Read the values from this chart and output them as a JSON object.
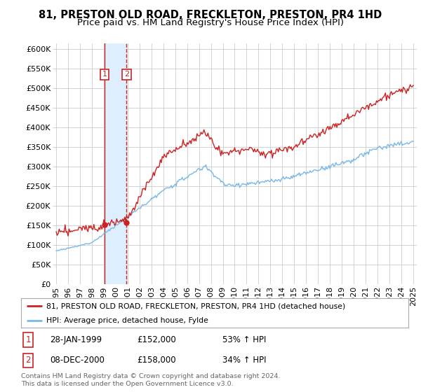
{
  "title": "81, PRESTON OLD ROAD, FRECKLETON, PRESTON, PR4 1HD",
  "subtitle": "Price paid vs. HM Land Registry's House Price Index (HPI)",
  "ylabel_ticks": [
    "£0",
    "£50K",
    "£100K",
    "£150K",
    "£200K",
    "£250K",
    "£300K",
    "£350K",
    "£400K",
    "£450K",
    "£500K",
    "£550K",
    "£600K"
  ],
  "ytick_vals": [
    0,
    50000,
    100000,
    150000,
    200000,
    250000,
    300000,
    350000,
    400000,
    450000,
    500000,
    550000,
    600000
  ],
  "ylim": [
    0,
    615000
  ],
  "xlim_start": 1994.7,
  "xlim_end": 2025.3,
  "sale1_date": 1999.07,
  "sale1_price": 152000,
  "sale1_label": "1",
  "sale2_date": 2000.92,
  "sale2_price": 158000,
  "sale2_label": "2",
  "transaction_info": [
    {
      "num": "1",
      "date": "28-JAN-1999",
      "price": "£152,000",
      "hpi": "53% ↑ HPI"
    },
    {
      "num": "2",
      "date": "08-DEC-2000",
      "price": "£158,000",
      "hpi": "34% ↑ HPI"
    }
  ],
  "legend_line1": "81, PRESTON OLD ROAD, FRECKLETON, PRESTON, PR4 1HD (detached house)",
  "legend_line2": "HPI: Average price, detached house, Fylde",
  "footer": "Contains HM Land Registry data © Crown copyright and database right 2024.\nThis data is licensed under the Open Government Licence v3.0.",
  "hpi_color": "#7ab8e8",
  "price_color": "#cc2222",
  "vline1_color": "#cc2222",
  "vline2_color": "#cc2222",
  "shade_color": "#ddeeff",
  "background_color": "#ffffff",
  "grid_color": "#cccccc",
  "title_fontsize": 10.5,
  "subtitle_fontsize": 9.5,
  "tick_fontsize": 8
}
